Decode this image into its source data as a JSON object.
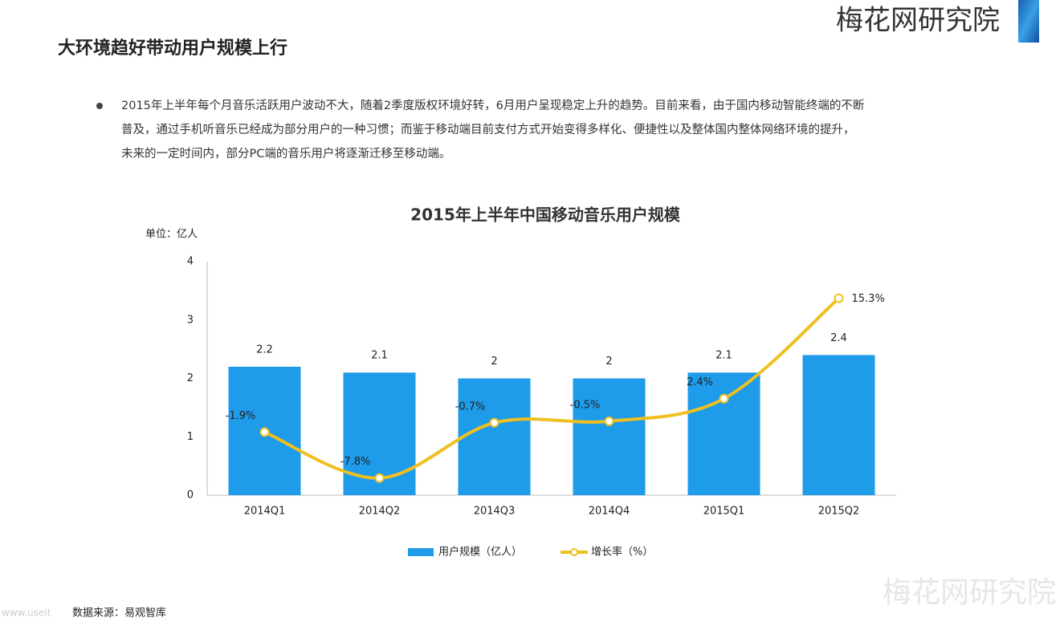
{
  "header": {
    "brand": "梅花网研究院",
    "title": "大环境趋好带动用户规模上行",
    "bullet_lines": [
      "2015年上半年每个月音乐活跃用户波动不大，随着2季度版权环境好转，6月用户呈现稳定上升的趋势。目前来看，由于国内移动智能终端的不断",
      "普及，通过手机听音乐已经成为部分用户的一种习惯；而鉴于移动端目前支付方式开始变得多样化、便捷性以及整体国内整体网络环境的提升，",
      "未来的一定时间内，部分PC端的音乐用户将逐渐迁移至移动端。"
    ]
  },
  "chart_data": {
    "type": "bar_line",
    "title": "2015年上半年中国移动音乐用户规模",
    "unit_label": "单位：亿人",
    "categories": [
      "2014Q1",
      "2014Q2",
      "2014Q3",
      "2014Q4",
      "2015Q1",
      "2015Q2"
    ],
    "series": [
      {
        "name": "用户规模（亿人）",
        "color": "#1e9be9",
        "kind": "bar",
        "values": [
          2.2,
          2.1,
          2,
          2,
          2.1,
          2.4
        ]
      },
      {
        "name": "增长率（%）",
        "color": "#f0c020",
        "kind": "line",
        "axis": "y2",
        "smooth": true,
        "values": [
          -1.9,
          -7.8,
          -0.7,
          -0.5,
          2.4,
          15.3
        ],
        "value_labels": [
          "-1.9%",
          "-7.8%",
          "-0.7%",
          "-0.5%",
          "2.4%",
          "15.3%"
        ]
      }
    ],
    "ylim": [
      0,
      4
    ],
    "yticks": [
      0,
      1,
      2,
      3,
      4
    ],
    "y2lim": [
      -10,
      20
    ],
    "grid": false,
    "legend": "bottom"
  },
  "footer": {
    "source": "数据来源：易观智库",
    "watermark": "梅花网研究院",
    "url_fragment": "www.useit"
  }
}
